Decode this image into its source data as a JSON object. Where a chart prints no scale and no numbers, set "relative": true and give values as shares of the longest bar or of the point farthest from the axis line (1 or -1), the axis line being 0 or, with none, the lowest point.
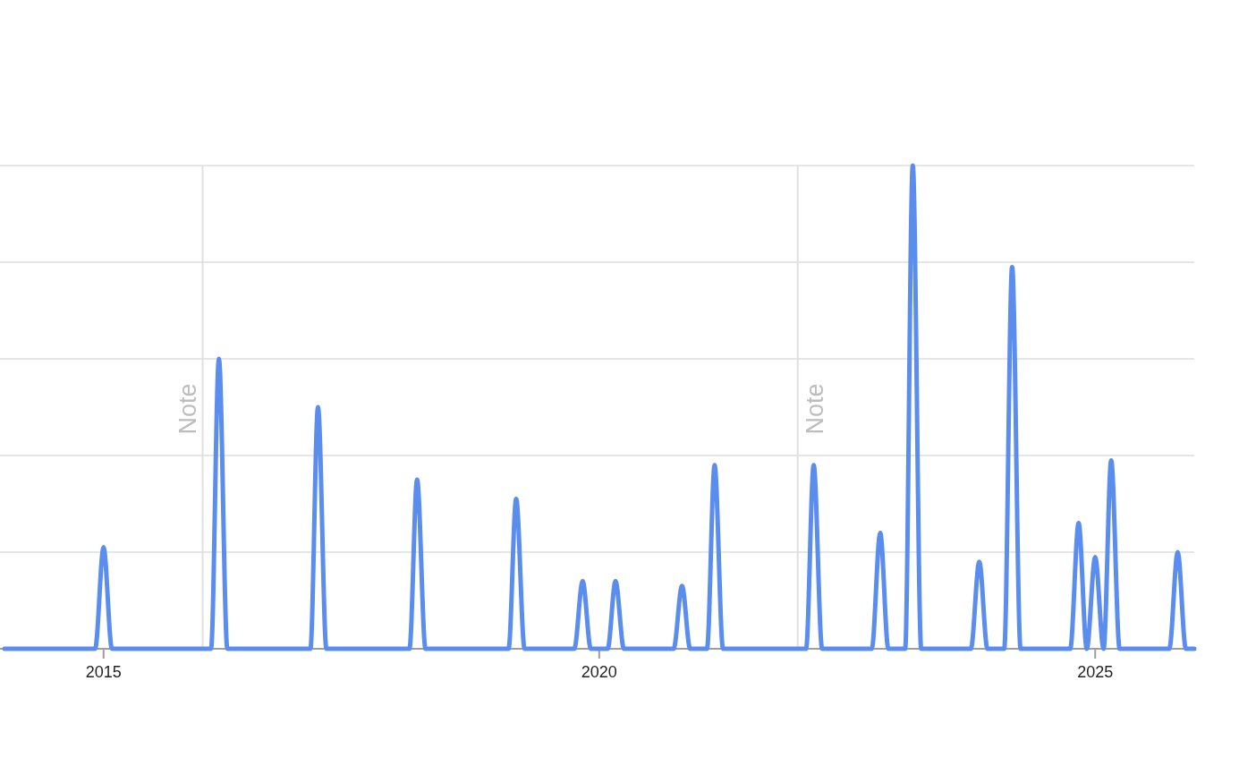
{
  "chart_data": {
    "type": "line",
    "relative": true,
    "color": "#5a8dee",
    "grid": "y",
    "x": [
      "2014-01",
      "2014-12",
      "2015-01",
      "2015-02",
      "2016-02",
      "2016-03",
      "2016-04",
      "2017-02",
      "2017-03",
      "2017-04",
      "2018-02",
      "2018-03",
      "2018-04",
      "2019-02",
      "2019-03",
      "2019-04",
      "2019-10",
      "2019-11",
      "2019-12",
      "2020-02",
      "2020-03",
      "2020-04",
      "2020-10",
      "2020-11",
      "2020-12",
      "2021-02",
      "2021-03",
      "2021-04",
      "2022-02",
      "2022-03",
      "2022-04",
      "2022-10",
      "2022-11",
      "2022-12",
      "2023-02",
      "2023-03",
      "2023-04",
      "2023-10",
      "2023-11",
      "2023-12",
      "2024-02",
      "2024-03",
      "2024-04",
      "2024-10",
      "2024-11",
      "2024-12",
      "2025-01",
      "2025-02",
      "2025-03",
      "2025-04",
      "2025-10",
      "2025-11",
      "2025-12",
      "2026-01"
    ],
    "values": [
      0,
      0,
      0.21,
      0,
      0,
      0.6,
      0,
      0,
      0.5,
      0,
      0,
      0.35,
      0,
      0,
      0.31,
      0,
      0,
      0.14,
      0,
      0,
      0.14,
      0,
      0,
      0.13,
      0,
      0,
      0.38,
      0,
      0,
      0.38,
      0,
      0,
      0.24,
      0,
      0,
      1,
      0,
      0,
      0.18,
      0,
      0,
      0.79,
      0,
      0,
      0.26,
      0,
      0.19,
      0,
      0.39,
      0,
      0,
      0.2,
      0,
      0
    ],
    "xlim": [
      "2014-01",
      "2026-01"
    ],
    "xticks": [
      "2015",
      "2020",
      "2025"
    ],
    "ref_lines": [
      {
        "axis": "x",
        "value": "2016-01",
        "label": "Note",
        "color": "#e0e0e0"
      },
      {
        "axis": "x",
        "value": "2022-01",
        "label": "Note",
        "color": "#e0e0e0"
      }
    ]
  }
}
